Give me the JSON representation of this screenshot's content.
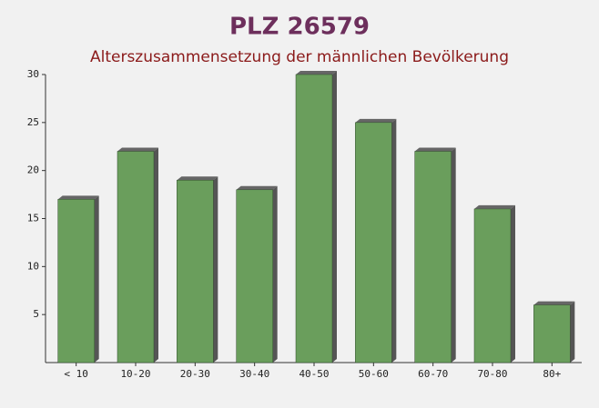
{
  "chart_data": {
    "type": "bar",
    "title": "PLZ 26579",
    "subtitle": "Alterszusammensetzung der männlichen Bevölkerung",
    "categories": [
      "< 10",
      "10-20",
      "20-30",
      "30-40",
      "40-50",
      "50-60",
      "60-70",
      "70-80",
      "80+"
    ],
    "values": [
      17,
      22,
      19,
      18,
      30,
      25,
      22,
      16,
      6
    ],
    "color": "#6a9e5c",
    "ylim": [
      0,
      30
    ],
    "yticks": [
      5,
      10,
      15,
      20,
      25,
      30
    ]
  }
}
